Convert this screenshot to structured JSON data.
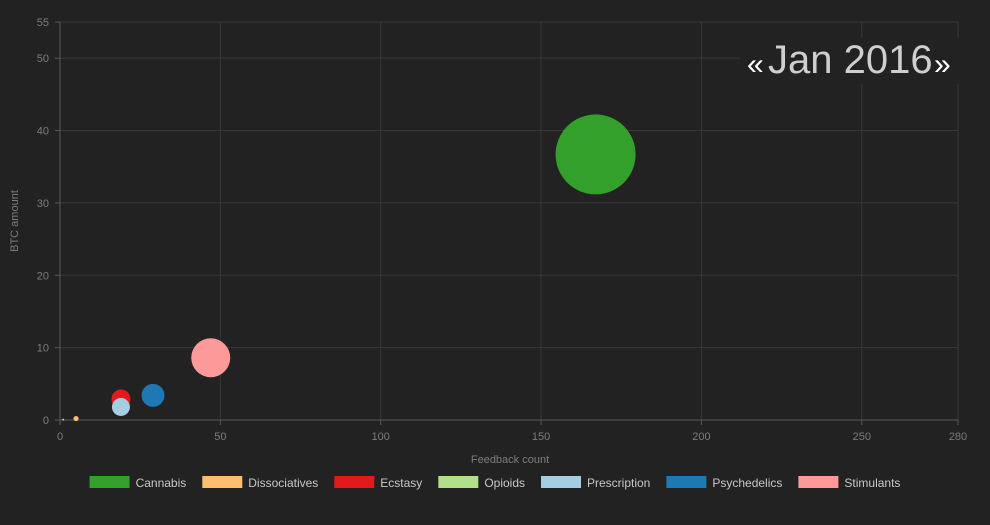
{
  "chart_data": {
    "type": "scatter",
    "subtype": "bubble",
    "period": {
      "prev": "«",
      "label": "Jan 2016",
      "next": "»"
    },
    "xlabel": "Feedback count",
    "ylabel": "BTC amount",
    "xlim": [
      0,
      280
    ],
    "ylim": [
      0,
      55
    ],
    "xticks": [
      0,
      50,
      100,
      150,
      200,
      250,
      280
    ],
    "yticks": [
      0,
      10,
      20,
      30,
      40,
      50,
      55
    ],
    "grid": true,
    "legend_position": "bottom",
    "series": [
      {
        "name": "Cannabis",
        "color": "#33a02c",
        "x": 167,
        "y": 36.7,
        "size": 40
      },
      {
        "name": "Dissociatives",
        "color": "#fdbf6f",
        "x": 5,
        "y": 0.2,
        "size": 2.6
      },
      {
        "name": "Ecstasy",
        "color": "#e31a1c",
        "x": 19,
        "y": 2.9,
        "size": 9.5
      },
      {
        "name": "Opioids",
        "color": "#b2df8a",
        "x": 1,
        "y": 0.05,
        "size": 1
      },
      {
        "name": "Prescription",
        "color": "#a6cee3",
        "x": 19,
        "y": 1.8,
        "size": 9
      },
      {
        "name": "Psychedelics",
        "color": "#1f78b4",
        "x": 29,
        "y": 3.4,
        "size": 11.5
      },
      {
        "name": "Stimulants",
        "color": "#fb9a99",
        "x": 47,
        "y": 8.6,
        "size": 19.5
      }
    ]
  }
}
